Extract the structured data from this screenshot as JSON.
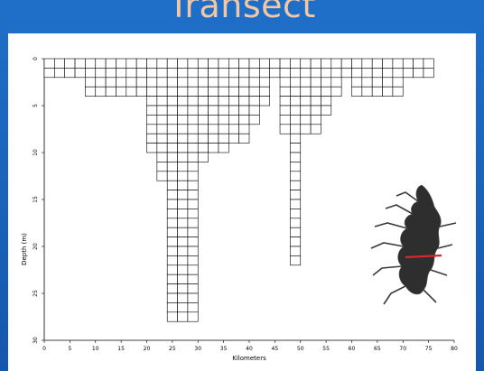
{
  "slide": {
    "title": "Transect"
  },
  "chart_data": {
    "type": "grid-transect",
    "xlabel": "Kilometers",
    "ylabel": "Depth (m)",
    "xlim": [
      0,
      80
    ],
    "ylim": [
      0,
      30
    ],
    "xticks": [
      "0",
      "5",
      "10",
      "15",
      "20",
      "25",
      "30",
      "35",
      "40",
      "45",
      "50",
      "55",
      "60",
      "65",
      "70",
      "75",
      "80"
    ],
    "yticks": [
      "0",
      "5",
      "10",
      "15",
      "20",
      "25",
      "30"
    ],
    "cell_width_km": 2,
    "cell_depth_m": 1,
    "columns": [
      {
        "x": 0,
        "depth": 2
      },
      {
        "x": 2,
        "depth": 2
      },
      {
        "x": 4,
        "depth": 2
      },
      {
        "x": 6,
        "depth": 2
      },
      {
        "x": 8,
        "depth": 4
      },
      {
        "x": 10,
        "depth": 4
      },
      {
        "x": 12,
        "depth": 4
      },
      {
        "x": 14,
        "depth": 4
      },
      {
        "x": 16,
        "depth": 4
      },
      {
        "x": 18,
        "depth": 4
      },
      {
        "x": 20,
        "depth": 10
      },
      {
        "x": 22,
        "depth": 13
      },
      {
        "x": 24,
        "depth": 28
      },
      {
        "x": 26,
        "depth": 28
      },
      {
        "x": 28,
        "depth": 28
      },
      {
        "x": 30,
        "depth": 11
      },
      {
        "x": 32,
        "depth": 10
      },
      {
        "x": 34,
        "depth": 10
      },
      {
        "x": 36,
        "depth": 9
      },
      {
        "x": 38,
        "depth": 9
      },
      {
        "x": 40,
        "depth": 7
      },
      {
        "x": 42,
        "depth": 5
      },
      {
        "x": 44,
        "depth": 2
      },
      {
        "x": 46,
        "depth": 8
      },
      {
        "x": 48,
        "depth": 22
      },
      {
        "x": 50,
        "depth": 8
      },
      {
        "x": 52,
        "depth": 8
      },
      {
        "x": 54,
        "depth": 6
      },
      {
        "x": 56,
        "depth": 4
      },
      {
        "x": 58,
        "depth": 2
      },
      {
        "x": 60,
        "depth": 4
      },
      {
        "x": 62,
        "depth": 4
      },
      {
        "x": 64,
        "depth": 4
      },
      {
        "x": 66,
        "depth": 4
      },
      {
        "x": 68,
        "depth": 4
      },
      {
        "x": 70,
        "depth": 2
      },
      {
        "x": 72,
        "depth": 2
      },
      {
        "x": 74,
        "depth": 2
      }
    ],
    "inset_map": {
      "transect_color": "#d62828"
    }
  }
}
